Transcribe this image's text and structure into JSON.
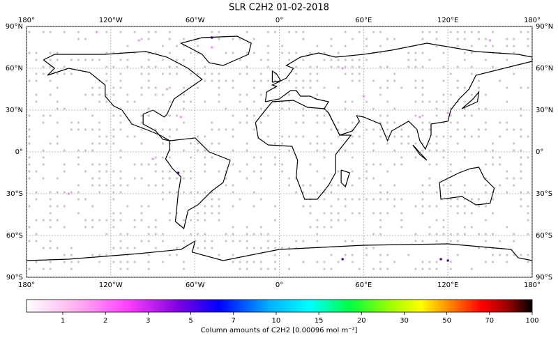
{
  "map": {
    "title": "SLR C2H2 01-02-2018",
    "xticks": [
      {
        "value": -180,
        "label": "180°"
      },
      {
        "value": -120,
        "label": "120°W"
      },
      {
        "value": -60,
        "label": "60°W"
      },
      {
        "value": 0,
        "label": "0°"
      },
      {
        "value": 60,
        "label": "60°E"
      },
      {
        "value": 120,
        "label": "120°E"
      },
      {
        "value": 180,
        "label": "180°"
      }
    ],
    "yticks": [
      {
        "value": 90,
        "label": "90°N"
      },
      {
        "value": 60,
        "label": "60°N"
      },
      {
        "value": 30,
        "label": "30°N"
      },
      {
        "value": 0,
        "label": "0°"
      },
      {
        "value": -30,
        "label": "30°S"
      },
      {
        "value": -60,
        "label": "60°S"
      },
      {
        "value": -90,
        "label": "90°S"
      }
    ],
    "colorbar": {
      "ticks": [
        1,
        2,
        3,
        5,
        7,
        10,
        15,
        20,
        30,
        50,
        70,
        100
      ],
      "label": "Column amounts of C2H2 [0.00096 mol m⁻²]"
    }
  }
}
